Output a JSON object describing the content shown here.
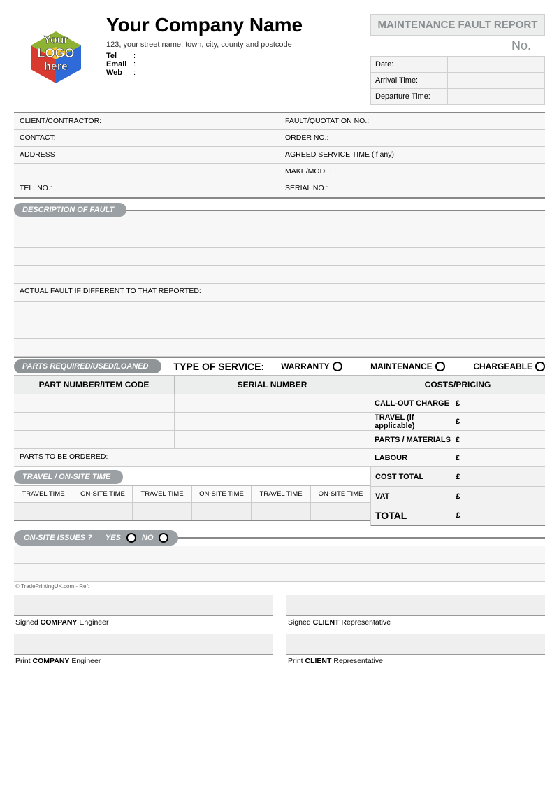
{
  "header": {
    "company_name": "Your Company Name",
    "address": "123, your street name, town, city, county and postcode",
    "tel_label": "Tel",
    "email_label": "Email",
    "web_label": "Web",
    "report_title": "MAINTENANCE FAULT REPORT",
    "no_label": "No.",
    "mini": {
      "date": "Date:",
      "arrival": "Arrival Time:",
      "departure": "Departure Time:"
    },
    "logo": {
      "line1": "Your",
      "line2": "LOGO",
      "line3": "here"
    },
    "colors": {
      "logo_red": "#d83a2f",
      "logo_blue": "#2f6bd8",
      "logo_yellow": "#f3c32b",
      "logo_green": "#3aa43a"
    }
  },
  "client_grid": {
    "left": [
      "CLIENT/CONTRACTOR:",
      "CONTACT:",
      "ADDRESS",
      "",
      "TEL. NO.:"
    ],
    "right": [
      "FAULT/QUOTATION NO.:",
      "ORDER NO.:",
      "AGREED SERVICE TIME (if any):",
      "MAKE/MODEL:",
      "SERIAL NO.:"
    ]
  },
  "sections": {
    "fault": "DESCRIPTION OF FAULT",
    "actual_fault": "ACTUAL FAULT IF DIFFERENT TO THAT REPORTED:",
    "parts": "PARTS REQUIRED/USED/LOANED",
    "travel": "TRAVEL / ON-SITE TIME",
    "issues": "ON-SITE ISSUES ?"
  },
  "service": {
    "type_label": "TYPE OF SERVICE:",
    "warranty": "WARRANTY",
    "maintenance": "MAINTENANCE",
    "chargeable": "CHARGEABLE"
  },
  "parts_table": {
    "columns": [
      "PART NUMBER/ITEM CODE",
      "SERIAL NUMBER",
      "COSTS/PRICING"
    ],
    "costs": [
      {
        "label": "CALL-OUT CHARGE",
        "currency": "£"
      },
      {
        "label": "TRAVEL (if applicable)",
        "currency": "£"
      },
      {
        "label": "PARTS / MATERIALS",
        "currency": "£"
      },
      {
        "label": "LABOUR",
        "currency": "£"
      }
    ],
    "ordered_label": "PARTS TO BE ORDERED:"
  },
  "travel_table": {
    "headers": [
      "TRAVEL TIME",
      "ON-SITE TIME",
      "TRAVEL TIME",
      "ON-SITE TIME",
      "TRAVEL TIME",
      "ON-SITE TIME"
    ]
  },
  "totals": {
    "cost_total": "COST TOTAL",
    "vat": "VAT",
    "total": "TOTAL",
    "currency": "£"
  },
  "issues": {
    "yes": "YES",
    "no": "NO"
  },
  "footnote": "© TradePrintingUK.com - Ref:",
  "signatures": {
    "signed_company": "Signed <b>COMPANY</b> Engineer",
    "signed_client": "Signed <b>CLIENT</b> Representative",
    "print_company": "Print <b>COMPANY</b> Engineer",
    "print_client": "Print <b>CLIENT</b> Representative"
  }
}
